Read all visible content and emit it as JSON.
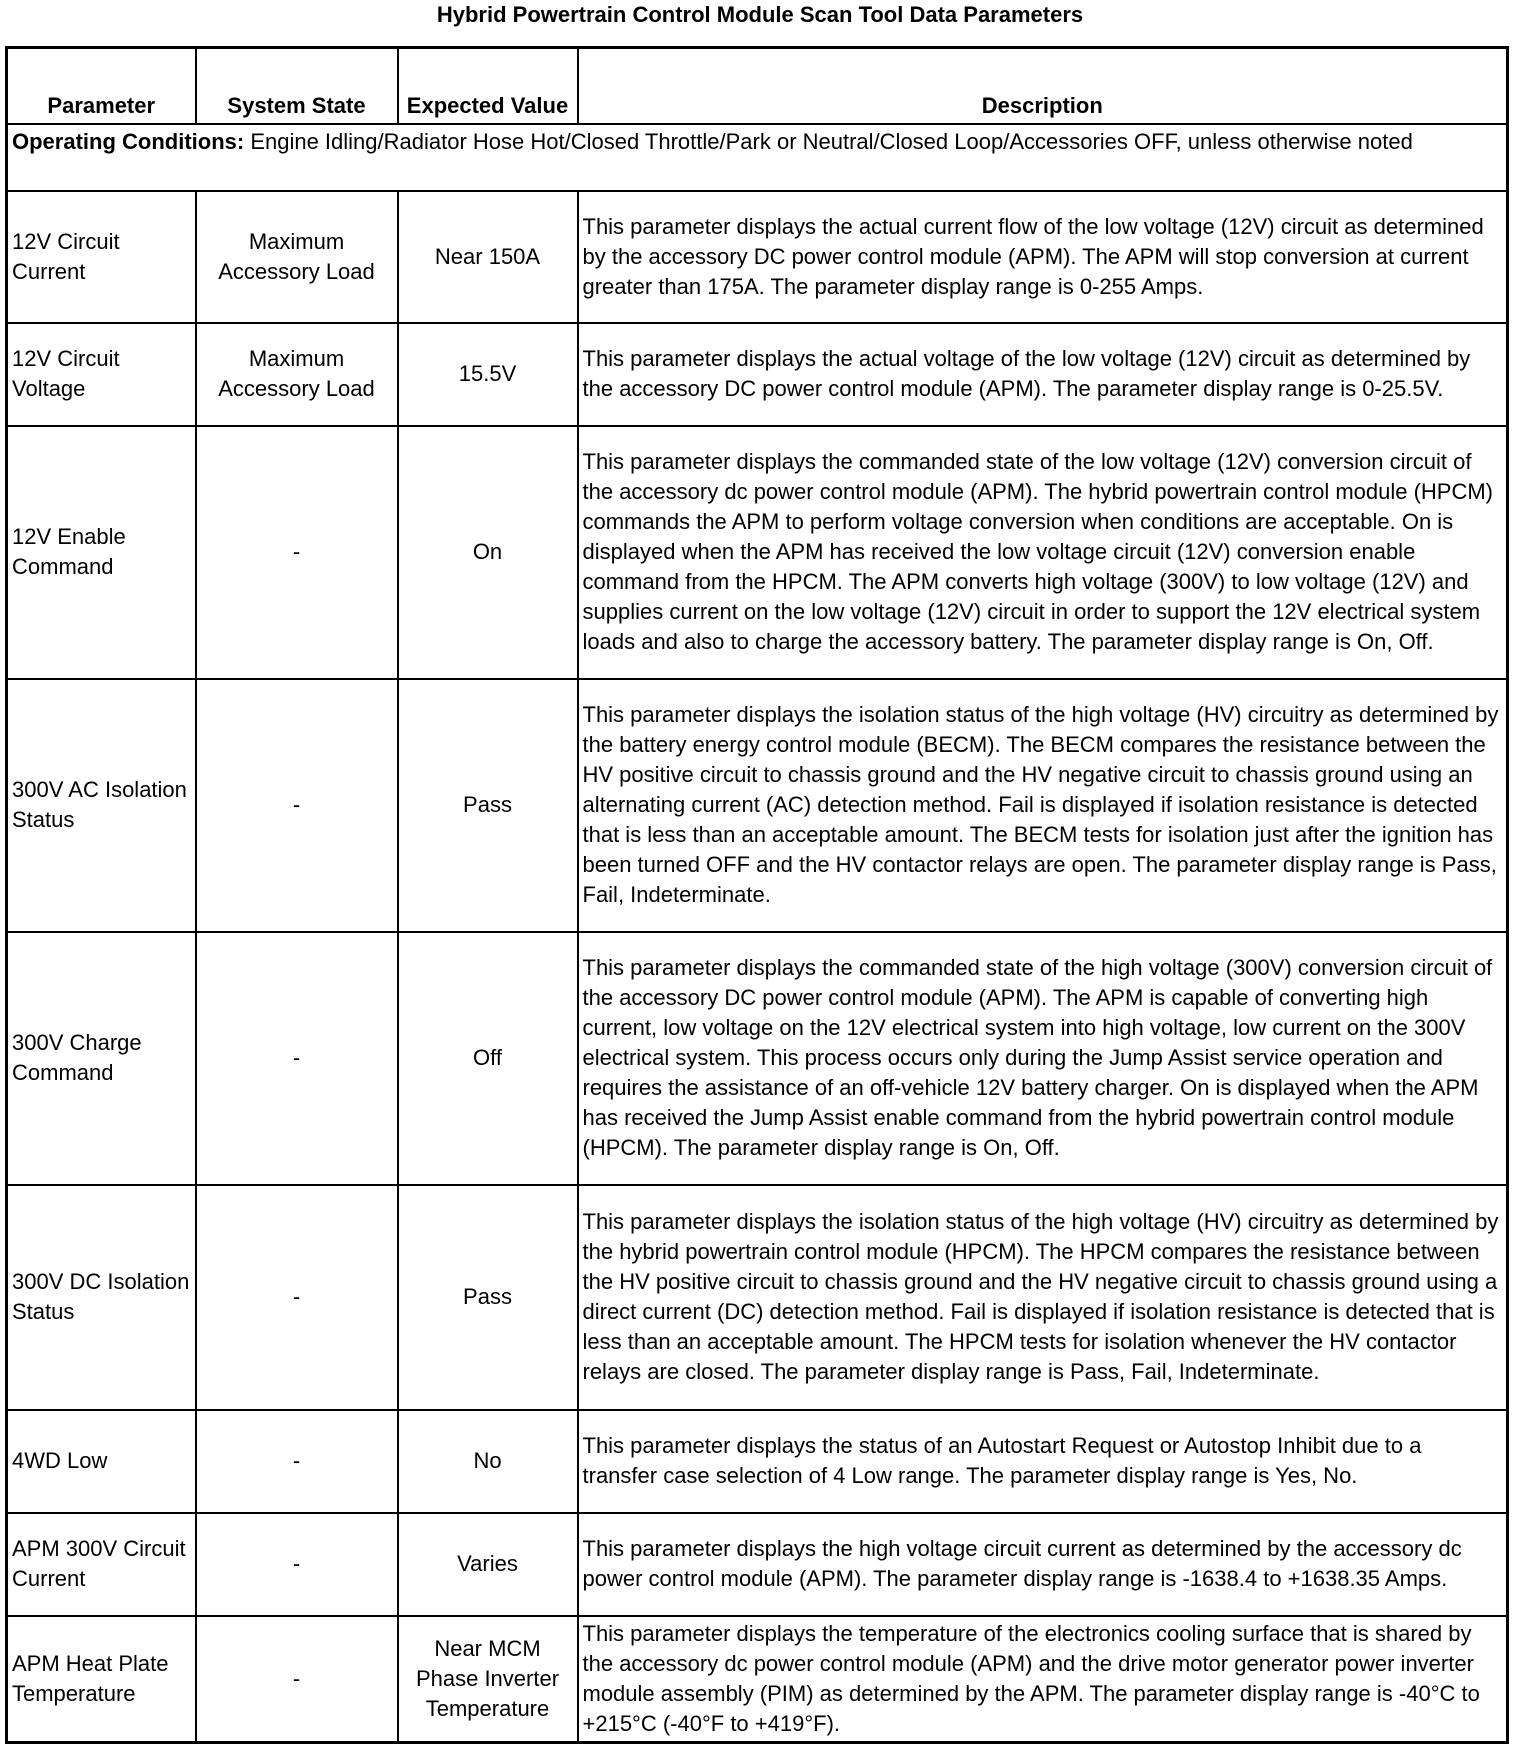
{
  "title": "Hybrid Powertrain Control Module Scan Tool Data Parameters",
  "headers": {
    "parameter": "Parameter",
    "system_state": "System State",
    "expected_value": "Expected Value",
    "description": "Description"
  },
  "operating_conditions": {
    "label": "Operating Conditions:",
    "text": " Engine Idling/Radiator Hose Hot/Closed Throttle/Park or Neutral/Closed Loop/Accessories OFF, unless otherwise noted"
  },
  "rows": [
    {
      "parameter": "12V Circuit Current",
      "system_state": "Maximum Accessory Load",
      "expected_value": "Near 150A",
      "description": "This parameter displays the actual current flow of the low voltage (12V) circuit as determined by the accessory DC power control module (APM). The APM will stop conversion at current greater than 175A. The parameter display range is 0-255 Amps."
    },
    {
      "parameter": "12V Circuit Voltage",
      "system_state": "Maximum Accessory Load",
      "expected_value": "15.5V",
      "description": "This parameter displays the actual voltage of the low voltage (12V) circuit as determined by the accessory DC power control module (APM). The parameter display range is 0-25.5V."
    },
    {
      "parameter": "12V Enable Command",
      "system_state": "-",
      "expected_value": "On",
      "description": "This parameter displays the commanded state of the low voltage (12V) conversion circuit of the accessory dc power control module (APM). The hybrid powertrain control module (HPCM) commands the APM to perform voltage conversion when conditions are acceptable. On is displayed when the APM has received the low voltage circuit (12V) conversion enable command from the HPCM. The APM converts high voltage (300V) to low voltage (12V) and supplies current on the low voltage (12V) circuit in order to support the 12V electrical system loads and also to charge the accessory battery. The parameter display range is On, Off."
    },
    {
      "parameter": "300V AC Isolation Status",
      "system_state": "-",
      "expected_value": "Pass",
      "description": "This parameter displays the isolation status of the high voltage (HV) circuitry as determined by the battery energy control module (BECM). The BECM compares the resistance between the HV positive circuit to chassis ground and the HV negative circuit to chassis ground using an alternating current (AC) detection method. Fail is displayed if isolation resistance is detected that is less than an acceptable amount. The BECM tests for isolation just after the ignition has been turned OFF and the HV contactor relays are open. The parameter display range is Pass, Fail, Indeterminate."
    },
    {
      "parameter": "300V Charge Command",
      "system_state": "-",
      "expected_value": "Off",
      "description": "This parameter displays the commanded state of the high voltage (300V) conversion circuit of the accessory DC power control module (APM). The APM is capable of converting high current, low voltage on the 12V electrical system into high voltage, low current on the 300V electrical system. This process occurs only during the Jump Assist service operation and requires the assistance of an off-vehicle 12V battery charger. On is displayed when the APM has received the Jump Assist enable command from the hybrid powertrain control module (HPCM). The parameter display range is On, Off."
    },
    {
      "parameter": "300V DC Isolation Status",
      "system_state": "-",
      "expected_value": "Pass",
      "description": "This parameter displays the isolation status of the high voltage (HV) circuitry as determined by the hybrid powertrain control module (HPCM). The HPCM compares the resistance between the HV positive circuit to chassis ground and the HV negative circuit to chassis ground using a direct current (DC) detection method. Fail is displayed if isolation resistance is detected that is less than an acceptable amount. The HPCM tests for isolation whenever the HV contactor relays are closed. The parameter display range is Pass, Fail, Indeterminate."
    },
    {
      "parameter": "4WD Low",
      "system_state": "-",
      "expected_value": "No",
      "description": "This parameter displays the status of an Autostart Request or Autostop Inhibit due to a transfer case selection of 4 Low range. The parameter display range is Yes, No."
    },
    {
      "parameter": "APM 300V Circuit Current",
      "system_state": "-",
      "expected_value": "Varies",
      "description": "This parameter displays the high voltage circuit current as determined by the accessory dc power control module (APM). The parameter display range is -1638.4 to +1638.35 Amps."
    },
    {
      "parameter": "APM Heat Plate Temperature",
      "system_state": "-",
      "expected_value": "Near MCM Phase Inverter Temperature",
      "description": "This parameter displays the temperature of the electronics cooling surface that is shared by the accessory dc power control module (APM) and the drive motor generator power inverter module assembly (PIM) as determined by the APM. The parameter display range is -40°C to +215°C (-40°F to +419°F)."
    }
  ]
}
